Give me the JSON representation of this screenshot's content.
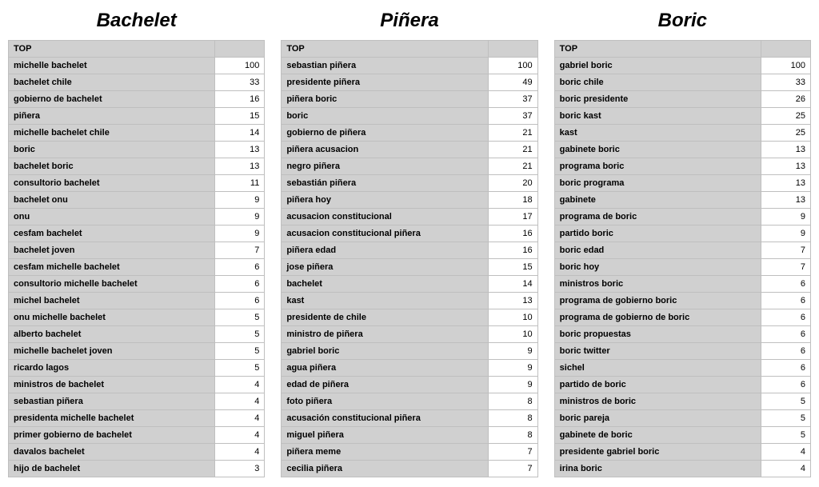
{
  "layout": {
    "background_color": "#ffffff",
    "border_color": "#bfbfbf",
    "header_bg": "#d0d0d0",
    "cell_bg_term": "#d0d0d0",
    "cell_bg_value": "#ffffff",
    "title_font_style": "italic",
    "title_font_weight": 700,
    "title_fontsize_pt": 18,
    "cell_fontsize_pt": 8
  },
  "header_label": "TOP",
  "columns": [
    {
      "title": "Bachelet",
      "rows": [
        {
          "term": "michelle bachelet",
          "value": 100
        },
        {
          "term": "bachelet chile",
          "value": 33
        },
        {
          "term": "gobierno de bachelet",
          "value": 16
        },
        {
          "term": "piñera",
          "value": 15
        },
        {
          "term": "michelle bachelet chile",
          "value": 14
        },
        {
          "term": "boric",
          "value": 13
        },
        {
          "term": "bachelet boric",
          "value": 13
        },
        {
          "term": "consultorio bachelet",
          "value": 11
        },
        {
          "term": "bachelet onu",
          "value": 9
        },
        {
          "term": "onu",
          "value": 9
        },
        {
          "term": "cesfam bachelet",
          "value": 9
        },
        {
          "term": "bachelet joven",
          "value": 7
        },
        {
          "term": "cesfam michelle bachelet",
          "value": 6
        },
        {
          "term": "consultorio michelle bachelet",
          "value": 6
        },
        {
          "term": "michel bachelet",
          "value": 6
        },
        {
          "term": "onu michelle bachelet",
          "value": 5
        },
        {
          "term": "alberto bachelet",
          "value": 5
        },
        {
          "term": "michelle bachelet joven",
          "value": 5
        },
        {
          "term": "ricardo lagos",
          "value": 5
        },
        {
          "term": "ministros de bachelet",
          "value": 4
        },
        {
          "term": "sebastian piñera",
          "value": 4
        },
        {
          "term": "presidenta michelle bachelet",
          "value": 4
        },
        {
          "term": "primer gobierno de bachelet",
          "value": 4
        },
        {
          "term": "davalos bachelet",
          "value": 4
        },
        {
          "term": "hijo de bachelet",
          "value": 3
        }
      ]
    },
    {
      "title": "Piñera",
      "rows": [
        {
          "term": "sebastian piñera",
          "value": 100
        },
        {
          "term": "presidente piñera",
          "value": 49
        },
        {
          "term": "piñera boric",
          "value": 37
        },
        {
          "term": "boric",
          "value": 37
        },
        {
          "term": "gobierno de piñera",
          "value": 21
        },
        {
          "term": "piñera acusacion",
          "value": 21
        },
        {
          "term": "negro piñera",
          "value": 21
        },
        {
          "term": "sebastián piñera",
          "value": 20
        },
        {
          "term": "piñera hoy",
          "value": 18
        },
        {
          "term": "acusacion constitucional",
          "value": 17
        },
        {
          "term": "acusacion constitucional piñera",
          "value": 16
        },
        {
          "term": "piñera edad",
          "value": 16
        },
        {
          "term": "jose piñera",
          "value": 15
        },
        {
          "term": "bachelet",
          "value": 14
        },
        {
          "term": "kast",
          "value": 13
        },
        {
          "term": "presidente de chile",
          "value": 10
        },
        {
          "term": "ministro de piñera",
          "value": 10
        },
        {
          "term": "gabriel boric",
          "value": 9
        },
        {
          "term": "agua piñera",
          "value": 9
        },
        {
          "term": "edad de piñera",
          "value": 9
        },
        {
          "term": "foto piñera",
          "value": 8
        },
        {
          "term": "acusación constitucional piñera",
          "value": 8
        },
        {
          "term": "miguel piñera",
          "value": 8
        },
        {
          "term": "piñera meme",
          "value": 7
        },
        {
          "term": "cecilia piñera",
          "value": 7
        }
      ]
    },
    {
      "title": "Boric",
      "rows": [
        {
          "term": "gabriel boric",
          "value": 100
        },
        {
          "term": "boric chile",
          "value": 33
        },
        {
          "term": "boric presidente",
          "value": 26
        },
        {
          "term": "boric kast",
          "value": 25
        },
        {
          "term": "kast",
          "value": 25
        },
        {
          "term": "gabinete boric",
          "value": 13
        },
        {
          "term": "programa boric",
          "value": 13
        },
        {
          "term": "boric programa",
          "value": 13
        },
        {
          "term": "gabinete",
          "value": 13
        },
        {
          "term": "programa de boric",
          "value": 9
        },
        {
          "term": "partido boric",
          "value": 9
        },
        {
          "term": "boric edad",
          "value": 7
        },
        {
          "term": "boric hoy",
          "value": 7
        },
        {
          "term": "ministros boric",
          "value": 6
        },
        {
          "term": "programa de gobierno boric",
          "value": 6
        },
        {
          "term": "programa de gobierno de boric",
          "value": 6
        },
        {
          "term": "boric propuestas",
          "value": 6
        },
        {
          "term": "boric twitter",
          "value": 6
        },
        {
          "term": "sichel",
          "value": 6
        },
        {
          "term": "partido de boric",
          "value": 6
        },
        {
          "term": "ministros de boric",
          "value": 5
        },
        {
          "term": "boric pareja",
          "value": 5
        },
        {
          "term": "gabinete de boric",
          "value": 5
        },
        {
          "term": "presidente gabriel boric",
          "value": 4
        },
        {
          "term": "irina boric",
          "value": 4
        }
      ]
    }
  ]
}
